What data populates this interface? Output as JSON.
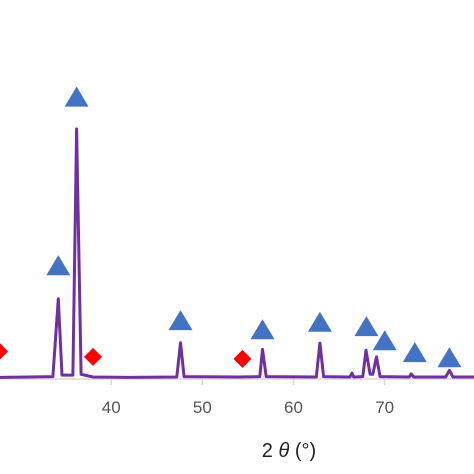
{
  "chart_data": {
    "type": "line",
    "xlabel": "2 θ (°)",
    "xlabel_parts": {
      "prefix": "2 ",
      "symbol": "θ",
      "suffix": " (°)"
    },
    "x_ticks": [
      40,
      50,
      60,
      70
    ],
    "xlim": [
      27.8,
      79.8
    ],
    "y_axis_visible": false,
    "grid": false,
    "line_color": "#7030a0",
    "series": [
      {
        "values": [
          {
            "x": 27.8,
            "y": 0.4
          },
          {
            "x": 31.0,
            "y": 0.5
          },
          {
            "x": 33.6,
            "y": 0.6
          },
          {
            "x": 34.2,
            "y": 20.3
          },
          {
            "x": 34.6,
            "y": 1.0
          },
          {
            "x": 35.8,
            "y": 1.0
          },
          {
            "x": 36.2,
            "y": 63.3
          },
          {
            "x": 36.7,
            "y": 1.2
          },
          {
            "x": 38.0,
            "y": 0.5
          },
          {
            "x": 42.0,
            "y": 0.4
          },
          {
            "x": 47.2,
            "y": 0.5
          },
          {
            "x": 47.6,
            "y": 9.2
          },
          {
            "x": 48.0,
            "y": 0.6
          },
          {
            "x": 54.0,
            "y": 0.5
          },
          {
            "x": 56.3,
            "y": 0.6
          },
          {
            "x": 56.6,
            "y": 7.5
          },
          {
            "x": 57.0,
            "y": 0.6
          },
          {
            "x": 62.5,
            "y": 0.5
          },
          {
            "x": 62.9,
            "y": 9.1
          },
          {
            "x": 63.3,
            "y": 0.6
          },
          {
            "x": 66.2,
            "y": 0.5
          },
          {
            "x": 66.4,
            "y": 1.5
          },
          {
            "x": 66.6,
            "y": 0.5
          },
          {
            "x": 67.6,
            "y": 0.6
          },
          {
            "x": 67.95,
            "y": 7.3
          },
          {
            "x": 68.4,
            "y": 1.2
          },
          {
            "x": 68.7,
            "y": 1.2
          },
          {
            "x": 69.1,
            "y": 5.6
          },
          {
            "x": 69.5,
            "y": 0.6
          },
          {
            "x": 72.7,
            "y": 0.5
          },
          {
            "x": 72.9,
            "y": 1.3
          },
          {
            "x": 73.2,
            "y": 0.5
          },
          {
            "x": 76.7,
            "y": 0.5
          },
          {
            "x": 77.1,
            "y": 2.2
          },
          {
            "x": 77.5,
            "y": 0.5
          },
          {
            "x": 79.8,
            "y": 0.5
          }
        ]
      }
    ],
    "markers": [
      {
        "shape": "triangle",
        "color": "#4472c4",
        "x": 36.2,
        "y": 71.5
      },
      {
        "shape": "triangle",
        "color": "#4472c4",
        "x": 34.2,
        "y": 28.8
      },
      {
        "shape": "triangle",
        "color": "#4472c4",
        "x": 47.6,
        "y": 14.9
      },
      {
        "shape": "triangle",
        "color": "#4472c4",
        "x": 56.6,
        "y": 12.6
      },
      {
        "shape": "triangle",
        "color": "#4472c4",
        "x": 62.9,
        "y": 14.5
      },
      {
        "shape": "triangle",
        "color": "#4472c4",
        "x": 68.0,
        "y": 13.4
      },
      {
        "shape": "triangle",
        "color": "#4472c4",
        "x": 70.0,
        "y": 9.8
      },
      {
        "shape": "triangle",
        "color": "#4472c4",
        "x": 73.3,
        "y": 6.8
      },
      {
        "shape": "triangle",
        "color": "#4472c4",
        "x": 77.1,
        "y": 5.5
      },
      {
        "shape": "diamond",
        "color": "#ff0000",
        "x": 38.0,
        "y": 5.6
      },
      {
        "shape": "diamond",
        "color": "#ff0000",
        "x": 54.4,
        "y": 5.1
      },
      {
        "shape": "diamond",
        "color": "#ff0000",
        "x": 27.7,
        "y": 7.0
      }
    ],
    "ylim": [
      0,
      80
    ]
  }
}
